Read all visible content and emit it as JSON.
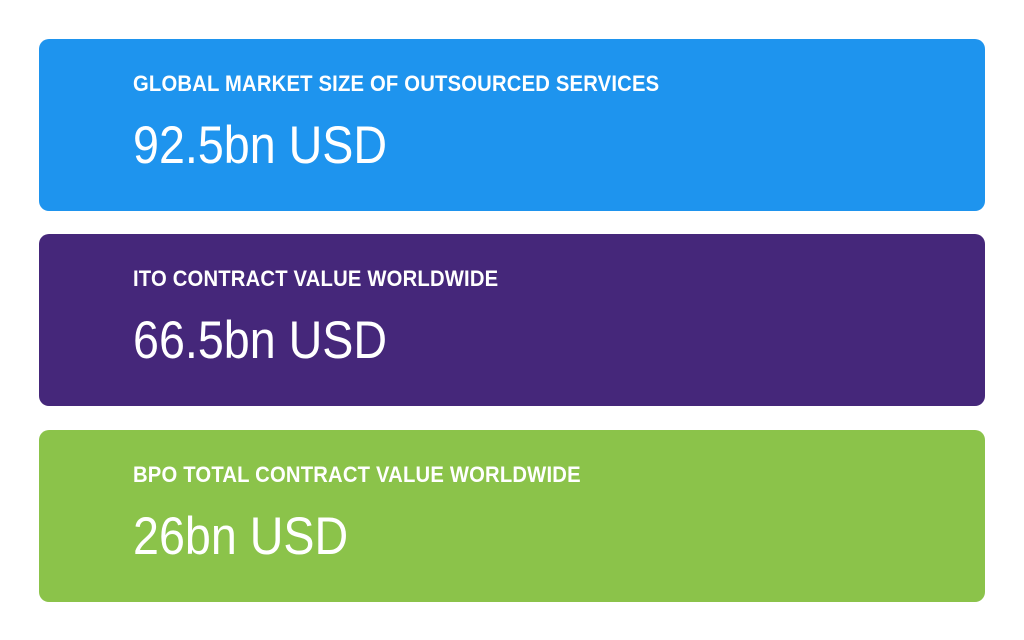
{
  "cards": [
    {
      "label": "GLOBAL MARKET SIZE OF OUTSOURCED SERVICES",
      "value": "92.5bn USD",
      "color": "#1e94ee"
    },
    {
      "label": "ITO CONTRACT VALUE WORLDWIDE",
      "value": "66.5bn USD",
      "color": "#45277a"
    },
    {
      "label": "BPO TOTAL CONTRACT VALUE WORLDWIDE",
      "value": "26bn USD",
      "color": "#8bc34a"
    }
  ]
}
